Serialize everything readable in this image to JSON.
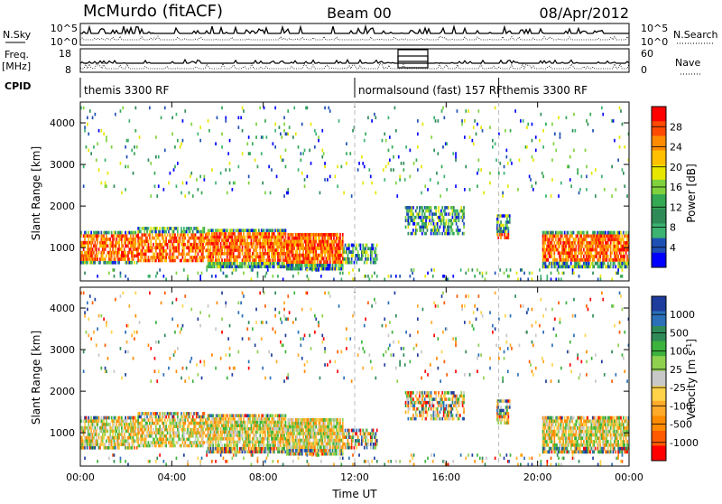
{
  "header": {
    "station": "McMurdo (fitACF)",
    "beam": "Beam 00",
    "date": "08/Apr/2012"
  },
  "status_panels": {
    "nsky_label": "N.Sky",
    "nsky_tick_top": "10^5",
    "nsky_tick_bottom": "10^0",
    "nsearch_label": "N.Search",
    "nsearch_tick_top": "10^5",
    "nsearch_tick_bottom": "10^0",
    "freq_label": "Freq.",
    "freq_unit": "[MHz]",
    "freq_ticks": [
      "18",
      "8"
    ],
    "nave_label": "Nave",
    "nave_ticks": [
      "60",
      "0"
    ],
    "cpid_label": "CPID"
  },
  "cpid_segments": [
    {
      "label": "themis 3300 RF",
      "start_h": 0,
      "end_h": 12
    },
    {
      "label": "normalsound (fast) 157 RF",
      "start_h": 12,
      "end_h": 18.3
    },
    {
      "label": "themis 3300 RF",
      "start_h": 18.3,
      "end_h": 24
    }
  ],
  "colorbars": {
    "power": {
      "label": "Power [dB]",
      "ticks": [
        "28",
        "24",
        "20",
        "16",
        "12",
        "8",
        "4"
      ],
      "colors": [
        "#ff0000",
        "#ff4a00",
        "#ff8c00",
        "#ffc000",
        "#e6e600",
        "#7fd23c",
        "#34a853",
        "#2e8b57",
        "#3cb371",
        "#1e50b4",
        "#0000ff"
      ]
    },
    "velocity": {
      "label": "Velocity [m s",
      "label_sup": "-1",
      "label_end": "]",
      "ticks": [
        "1000",
        "500",
        "100",
        "25",
        "-25",
        "-100",
        "-500",
        "-1000"
      ],
      "colors": [
        "#1e3c9c",
        "#2a6fb8",
        "#2e8b57",
        "#3cb33c",
        "#8fd14f",
        "#c8c8c8",
        "#ffd24a",
        "#ffaa2a",
        "#ff8c00",
        "#ff5a00",
        "#ff0000"
      ]
    }
  },
  "chart_data": [
    {
      "type": "heatmap",
      "title": "Power",
      "xlabel": "",
      "ylabel": "Slant Range [km]",
      "ylim": [
        200,
        4500
      ],
      "xlim": [
        0,
        24
      ],
      "y_ticks": [
        1000,
        2000,
        3000,
        4000
      ],
      "x_ticks": [
        "00:00",
        "04:00",
        "08:00",
        "12:00",
        "16:00",
        "20:00",
        "00:00"
      ],
      "grid": false
    },
    {
      "type": "heatmap",
      "title": "Velocity",
      "xlabel": "Time UT",
      "ylabel": "Slant Range [km]",
      "ylim": [
        200,
        4500
      ],
      "xlim": [
        0,
        24
      ],
      "y_ticks": [
        1000,
        2000,
        3000,
        4000
      ],
      "x_ticks": [
        "00:00",
        "04:00",
        "08:00",
        "12:00",
        "16:00",
        "20:00",
        "00:00"
      ],
      "grid": false
    }
  ]
}
